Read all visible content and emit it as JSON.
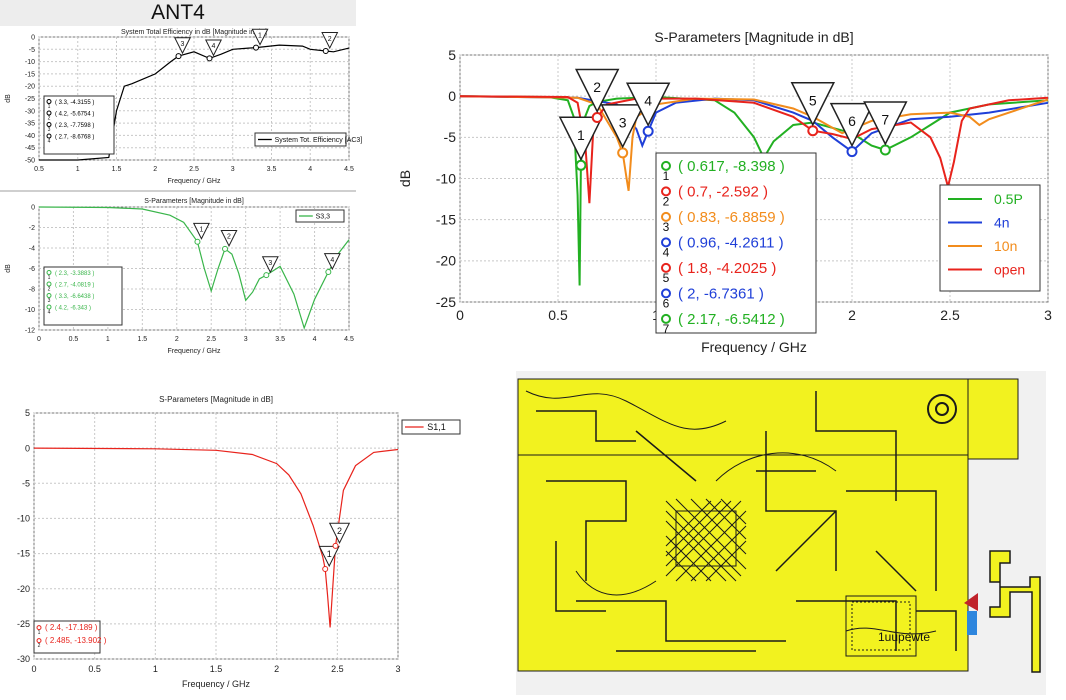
{
  "header": {
    "title": "ANT4"
  },
  "charts": [
    {
      "type": "line",
      "title": "System Total Efficiency in dB [Magnitude in dB]",
      "xlabel": "Frequency / GHz",
      "ylabel": "dB",
      "xlim": [
        0.5,
        4.5
      ],
      "ylim": [
        -50,
        0
      ],
      "xticks": [
        0.5,
        1,
        1.5,
        2,
        2.5,
        3,
        3.5,
        4,
        4.5
      ],
      "yticks": [
        0,
        -5,
        -10,
        -15,
        -20,
        -25,
        -30,
        -35,
        -40,
        -45,
        -50
      ],
      "grid": true,
      "legend_position": "bottom-right",
      "series": [
        {
          "name": "System Tot. Efficiency [AC3]",
          "color": "#000000",
          "x": [
            0.5,
            1.0,
            1.4,
            1.5,
            1.6,
            1.7,
            1.85,
            2.0,
            2.2,
            2.3,
            2.5,
            2.7,
            2.85,
            3.0,
            3.2,
            3.3,
            3.6,
            3.9,
            4.0,
            4.2,
            4.3,
            4.5
          ],
          "y": [
            -50,
            -50,
            -49,
            -30,
            -20,
            -19,
            -17,
            -15,
            -10,
            -7.76,
            -6,
            -8.68,
            -7,
            -5,
            -4.5,
            -4.3155,
            -3.3,
            -3.7,
            -5,
            -5.6754,
            -6,
            -4.5
          ]
        }
      ],
      "markers": [
        {
          "id": "1",
          "x": 3.3,
          "y": -4.3155,
          "label": "( 3.3, -4.3155 )"
        },
        {
          "id": "2",
          "x": 4.2,
          "y": -5.6754,
          "label": "( 4.2, -5.6754 )"
        },
        {
          "id": "3",
          "x": 2.3,
          "y": -7.7598,
          "label": "( 2.3, -7.7598 )"
        },
        {
          "id": "4",
          "x": 2.7,
          "y": -8.6768,
          "label": "( 2.7, -8.6768 )"
        }
      ]
    },
    {
      "type": "line",
      "title": "S-Parameters [Magnitude in dB]",
      "xlabel": "Frequency / GHz",
      "ylabel": "dB",
      "xlim": [
        0,
        4.5
      ],
      "ylim": [
        -12,
        0
      ],
      "xticks": [
        0,
        0.5,
        1,
        1.5,
        2,
        2.5,
        3,
        3.5,
        4,
        4.5
      ],
      "yticks": [
        0,
        -2,
        -4,
        -6,
        -8,
        -10,
        -12
      ],
      "grid": true,
      "legend_position": "top-right",
      "series": [
        {
          "name": "S3,3",
          "color": "#39b54a",
          "x": [
            0,
            1.0,
            1.5,
            1.9,
            2.1,
            2.3,
            2.4,
            2.5,
            2.6,
            2.7,
            2.8,
            2.9,
            3.0,
            3.1,
            3.2,
            3.3,
            3.5,
            3.7,
            3.85,
            4.0,
            4.2,
            4.35,
            4.5
          ],
          "y": [
            0,
            -0.05,
            -0.2,
            -0.8,
            -1.5,
            -3.388,
            -6,
            -8.2,
            -6,
            -4.08,
            -4.6,
            -6.5,
            -9.1,
            -8.3,
            -7.0,
            -6.64,
            -5.8,
            -8.5,
            -11.8,
            -9,
            -6.34,
            -4.5,
            -3.2
          ]
        }
      ],
      "markers": [
        {
          "id": "1",
          "x": 2.3,
          "y": -3.3883,
          "label": "( 2.3, -3.3883 )"
        },
        {
          "id": "2",
          "x": 2.7,
          "y": -4.0819,
          "label": "( 2.7, -4.0819 )"
        },
        {
          "id": "3",
          "x": 3.3,
          "y": -6.6438,
          "label": "( 3.3, -6.6438 )"
        },
        {
          "id": "4",
          "x": 4.2,
          "y": -6.343,
          "label": "( 4.2, -6.343 )"
        }
      ]
    },
    {
      "type": "line",
      "title": "S-Parameters [Magnitude in dB]",
      "xlabel": "Frequency / GHz",
      "ylabel": "dB",
      "xlim": [
        0,
        3
      ],
      "ylim": [
        -25,
        5
      ],
      "xticks": [
        0,
        0.5,
        1,
        1.5,
        2,
        2.5,
        3
      ],
      "yticks": [
        5,
        0,
        -5,
        -10,
        -15,
        -20,
        -25
      ],
      "grid": true,
      "legend_position": "bottom-right",
      "series": [
        {
          "name": "0.5P",
          "color": "#22b022",
          "x": [
            0,
            0.45,
            0.55,
            0.58,
            0.6,
            0.61,
            0.617,
            0.63,
            0.66,
            0.7,
            0.8,
            1.0,
            1.3,
            1.4,
            1.5,
            1.55,
            1.6,
            1.7,
            1.8,
            2.0,
            2.1,
            2.17,
            2.3,
            2.4,
            2.5,
            2.7,
            3.0
          ],
          "y": [
            0,
            -0.1,
            -0.5,
            -2.5,
            -12,
            -23,
            -8.398,
            -3,
            -1.2,
            -0.7,
            -0.3,
            -0.1,
            -0.5,
            -2,
            -5,
            -7.5,
            -5.5,
            -3.5,
            -3.2,
            -4.5,
            -6,
            -6.5412,
            -5,
            -3.5,
            -2,
            -1,
            -0.5
          ]
        },
        {
          "name": "4n",
          "color": "#1f3fd8",
          "x": [
            0,
            0.6,
            0.8,
            0.9,
            0.93,
            0.96,
            1.0,
            1.1,
            1.3,
            1.5,
            1.7,
            1.8,
            1.9,
            2.0,
            2.1,
            2.3,
            2.5,
            2.7,
            3.0
          ],
          "y": [
            0,
            -0.2,
            -1,
            -4,
            -6,
            -4.26,
            -2,
            -0.8,
            -0.3,
            -0.5,
            -2,
            -3,
            -5,
            -6.7361,
            -4.5,
            -2.8,
            -2.5,
            -2,
            -0.8
          ]
        },
        {
          "name": "10n",
          "color": "#f28c1c",
          "x": [
            0,
            0.6,
            0.7,
            0.8,
            0.83,
            0.85,
            0.86,
            0.88,
            0.9,
            1.0,
            1.2,
            1.5,
            1.7,
            1.8,
            1.95,
            2.1,
            2.3,
            2.5,
            2.6,
            2.65,
            2.7,
            3.0
          ],
          "y": [
            0,
            -0.2,
            -1,
            -5,
            -6.8859,
            -10,
            -11.5,
            -5,
            -2.5,
            -1,
            -0.3,
            -0.4,
            -1.5,
            -2.5,
            -4.5,
            -3,
            -2.2,
            -2,
            -2.5,
            -3.5,
            -2.8,
            -0.4
          ]
        },
        {
          "name": "open",
          "color": "#e8231c",
          "x": [
            0,
            0.55,
            0.6,
            0.64,
            0.66,
            0.68,
            0.7,
            0.75,
            0.9,
            1.2,
            1.5,
            1.7,
            1.8,
            1.9,
            2.0,
            2.1,
            2.3,
            2.4,
            2.45,
            2.49,
            2.52,
            2.56,
            2.6,
            2.8,
            3.0
          ],
          "y": [
            0,
            -0.1,
            -0.8,
            -6,
            -13,
            -4,
            -2.592,
            -1,
            -0.3,
            -0.3,
            -0.8,
            -2.5,
            -4.2,
            -4.6,
            -5.2,
            -4,
            -3.2,
            -5,
            -7.5,
            -11,
            -8,
            -3,
            -1.5,
            -0.5,
            -0.2
          ]
        }
      ],
      "markers": [
        {
          "id": "1",
          "x": 0.617,
          "y": -8.398,
          "label": "( 0.617, -8.398 )",
          "color": "#22b022"
        },
        {
          "id": "2",
          "x": 0.7,
          "y": -2.592,
          "label": "( 0.7, -2.592 )",
          "color": "#e8231c"
        },
        {
          "id": "3",
          "x": 0.83,
          "y": -6.8859,
          "label": "( 0.83, -6.8859 )",
          "color": "#f28c1c"
        },
        {
          "id": "4",
          "x": 0.96,
          "y": -4.2611,
          "label": "( 0.96, -4.2611 )",
          "color": "#1f3fd8"
        },
        {
          "id": "5",
          "x": 1.8,
          "y": -4.2025,
          "label": "( 1.8, -4.2025 )",
          "color": "#e8231c"
        },
        {
          "id": "6",
          "x": 2.0,
          "y": -6.7361,
          "label": "( 2, -6.7361 )",
          "color": "#1f3fd8"
        },
        {
          "id": "7",
          "x": 2.17,
          "y": -6.5412,
          "label": "( 2.17, -6.5412 )",
          "color": "#22b022"
        }
      ]
    },
    {
      "type": "line",
      "title": "S-Parameters [Magnitude in dB]",
      "xlabel": "Frequency / GHz",
      "ylabel": "",
      "xlim": [
        0,
        3
      ],
      "ylim": [
        -30,
        5
      ],
      "xticks": [
        0,
        0.5,
        1,
        1.5,
        2,
        2.5,
        3
      ],
      "yticks": [
        5,
        0,
        -5,
        -10,
        -15,
        -20,
        -25,
        -30
      ],
      "grid": true,
      "legend_position": "top-right",
      "series": [
        {
          "name": "S1,1",
          "color": "#e8231c",
          "x": [
            0,
            1.0,
            1.5,
            1.8,
            2.0,
            2.1,
            2.2,
            2.3,
            2.38,
            2.4,
            2.42,
            2.44,
            2.485,
            2.55,
            2.65,
            2.8,
            3.0
          ],
          "y": [
            0,
            -0.1,
            -0.3,
            -0.9,
            -2.2,
            -3.8,
            -6.5,
            -11,
            -15.5,
            -17.189,
            -21,
            -25.5,
            -13.902,
            -6,
            -2.5,
            -0.6,
            -0.2
          ]
        }
      ],
      "markers": [
        {
          "id": "1",
          "x": 2.4,
          "y": -17.189,
          "label": "( 2.4, -17.189 )"
        },
        {
          "id": "2",
          "x": 2.485,
          "y": -13.902,
          "label": "( 2.485, -13.902 )"
        }
      ]
    }
  ],
  "pcb": {
    "label": "1uupewte",
    "board_color": "#f2f21f",
    "trace_color": "#202020"
  }
}
